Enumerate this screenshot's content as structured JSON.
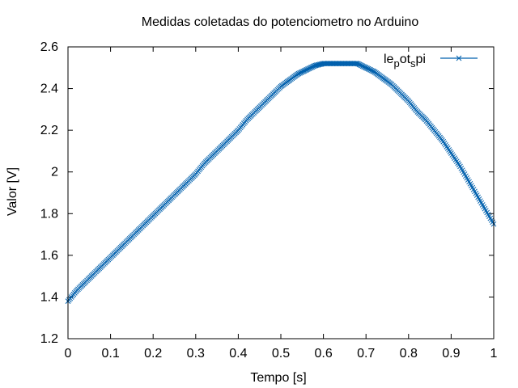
{
  "chart_data": {
    "type": "scatter",
    "title": "Medidas coletadas do potenciometro no Arduino",
    "xlabel": "Tempo [s]",
    "ylabel": "Valor [V]",
    "xlim": [
      0,
      1
    ],
    "ylim": [
      1.2,
      2.6
    ],
    "xticks": [
      "0",
      "0.1",
      "0.2",
      "0.3",
      "0.4",
      "0.5",
      "0.6",
      "0.7",
      "0.8",
      "0.9",
      "1"
    ],
    "yticks": [
      "1.2",
      "1.4",
      "1.6",
      "1.8",
      "2",
      "2.2",
      "2.4",
      "2.6"
    ],
    "grid": false,
    "legend_position": "top-right",
    "series": [
      {
        "name": "le_pot_spi",
        "legend": {
          "base": "le",
          "sub1": "p",
          "mid": "ot",
          "sub2": "s",
          "end": "pi"
        },
        "color": "#0060ad",
        "marker": "x",
        "x": [
          0.0,
          0.02,
          0.04,
          0.06,
          0.08,
          0.1,
          0.12,
          0.14,
          0.16,
          0.18,
          0.2,
          0.22,
          0.24,
          0.26,
          0.28,
          0.3,
          0.32,
          0.34,
          0.36,
          0.38,
          0.4,
          0.42,
          0.44,
          0.46,
          0.48,
          0.5,
          0.52,
          0.54,
          0.56,
          0.58,
          0.6,
          0.62,
          0.64,
          0.66,
          0.68,
          0.7,
          0.72,
          0.74,
          0.76,
          0.78,
          0.8,
          0.82,
          0.84,
          0.86,
          0.88,
          0.9,
          0.92,
          0.94,
          0.96,
          0.98,
          1.0
        ],
        "y": [
          1.38,
          1.43,
          1.47,
          1.51,
          1.55,
          1.59,
          1.63,
          1.67,
          1.71,
          1.75,
          1.79,
          1.83,
          1.87,
          1.91,
          1.95,
          1.99,
          2.04,
          2.08,
          2.12,
          2.16,
          2.2,
          2.25,
          2.29,
          2.33,
          2.37,
          2.41,
          2.44,
          2.47,
          2.49,
          2.51,
          2.52,
          2.52,
          2.52,
          2.52,
          2.52,
          2.5,
          2.48,
          2.45,
          2.42,
          2.38,
          2.34,
          2.29,
          2.25,
          2.2,
          2.15,
          2.09,
          2.03,
          1.96,
          1.89,
          1.82,
          1.75
        ]
      }
    ]
  }
}
